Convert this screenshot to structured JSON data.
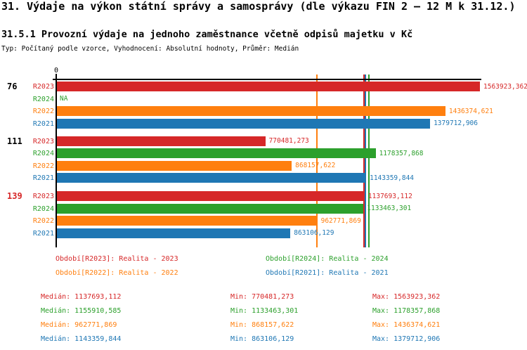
{
  "header": {
    "title": "31. Výdaje na výkon státní správy a samosprávy (dle výkazu FIN 2 – 12 M k 31.12.)",
    "subtitle": "31.5.1 Provozní výdaje na jednoho zaměstnance včetně odpisů majetku v Kč",
    "type_line": "Typ: Počítaný podle vzorce, Vyhodnocení: Absolutní hodnoty, Průměr: Medián"
  },
  "colors": {
    "R2023": "#d62728",
    "R2024": "#2ca02c",
    "R2022": "#ff7f0e",
    "R2021": "#1f77b4",
    "axis": "#000000"
  },
  "chart_data": {
    "type": "bar",
    "orientation": "horizontal",
    "x_axis": {
      "zero_label": "0",
      "min": 0,
      "anchor_max_value": 1563923.362
    },
    "series_order": [
      "R2023",
      "R2024",
      "R2022",
      "R2021"
    ],
    "groups": [
      {
        "label": "76",
        "highlight": false,
        "bars": [
          {
            "series": "R2023",
            "value": 1563923.362,
            "value_label": "1563923,362"
          },
          {
            "series": "R2024",
            "value": null,
            "value_label": "NA"
          },
          {
            "series": "R2022",
            "value": 1436374.621,
            "value_label": "1436374,621"
          },
          {
            "series": "R2021",
            "value": 1379712.906,
            "value_label": "1379712,906"
          }
        ]
      },
      {
        "label": "111",
        "highlight": false,
        "bars": [
          {
            "series": "R2023",
            "value": 770481.273,
            "value_label": "770481,273"
          },
          {
            "series": "R2024",
            "value": 1178357.868,
            "value_label": "1178357,868"
          },
          {
            "series": "R2022",
            "value": 868157.622,
            "value_label": "868157,622"
          },
          {
            "series": "R2021",
            "value": 1143359.844,
            "value_label": "1143359,844"
          }
        ]
      },
      {
        "label": "139",
        "highlight": true,
        "bars": [
          {
            "series": "R2023",
            "value": 1137693.112,
            "value_label": "1137693,112"
          },
          {
            "series": "R2024",
            "value": 1133463.301,
            "value_label": "1133463,301"
          },
          {
            "series": "R2022",
            "value": 962771.869,
            "value_label": "962771,869"
          },
          {
            "series": "R2021",
            "value": 863106.129,
            "value_label": "863106,129"
          }
        ]
      }
    ],
    "median_lines": [
      {
        "series": "R2023",
        "value": 1137693.112
      },
      {
        "series": "R2024",
        "value": 1155910.585
      },
      {
        "series": "R2022",
        "value": 962771.869
      },
      {
        "series": "R2021",
        "value": 1143359.844
      }
    ]
  },
  "legend": {
    "items": [
      {
        "series": "R2023",
        "text": "Období[R2023]: Realita - 2023"
      },
      {
        "series": "R2024",
        "text": "Období[R2024]: Realita - 2024"
      },
      {
        "series": "R2022",
        "text": "Období[R2022]: Realita - 2022"
      },
      {
        "series": "R2021",
        "text": "Období[R2021]: Realita - 2021"
      }
    ]
  },
  "stats": {
    "rows": [
      {
        "series": "R2023",
        "median": "Medián: 1137693,112",
        "min": "Min: 770481,273",
        "max": "Max: 1563923,362"
      },
      {
        "series": "R2024",
        "median": "Medián: 1155910,585",
        "min": "Min: 1133463,301",
        "max": "Max: 1178357,868"
      },
      {
        "series": "R2022",
        "median": "Medián: 962771,869",
        "min": "Min: 868157,622",
        "max": "Max: 1436374,621"
      },
      {
        "series": "R2021",
        "median": "Medián: 1143359,844",
        "min": "Min: 863106,129",
        "max": "Max: 1379712,906"
      }
    ]
  }
}
